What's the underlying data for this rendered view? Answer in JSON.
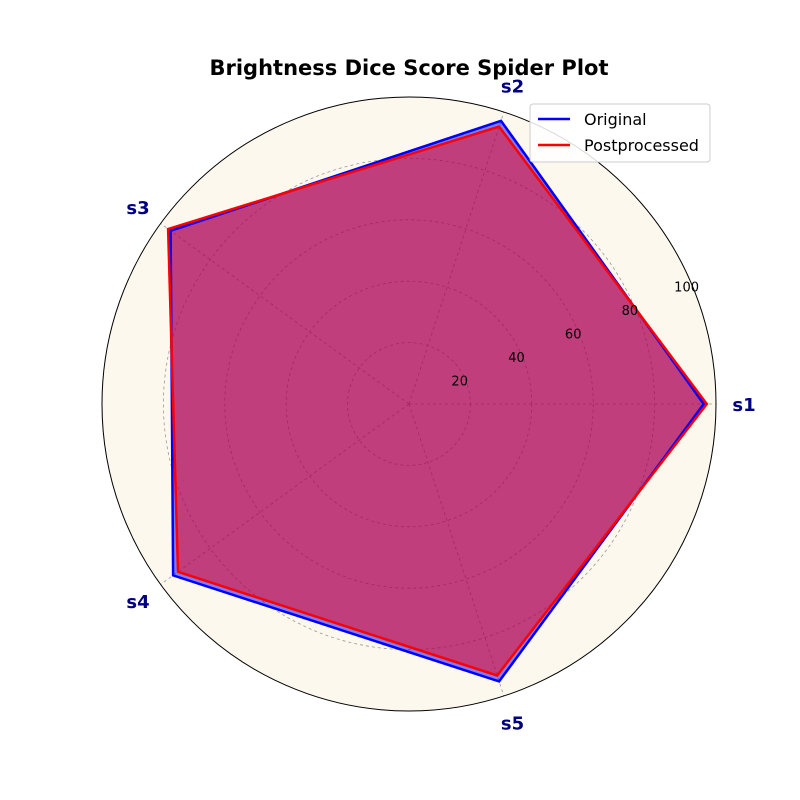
{
  "chart_data": {
    "type": "radar",
    "title": "Brightness Dice Score Spider Plot",
    "categories": [
      "s1",
      "s2",
      "s3",
      "s4",
      "s5"
    ],
    "rlim": [
      0,
      100
    ],
    "rticks": [
      20,
      40,
      60,
      80,
      100
    ],
    "grid": true,
    "legend_placement": "top-right",
    "series": [
      {
        "name": "Original",
        "values": [
          96,
          97,
          96,
          95,
          95
        ],
        "color": "#0000ff"
      },
      {
        "name": "Postprocessed",
        "values": [
          97,
          95,
          97,
          93,
          93
        ],
        "color": "#ff0000"
      }
    ],
    "label_color": "#000080",
    "background_color": "#fdf8ee",
    "fill_color": "#a03c96"
  }
}
